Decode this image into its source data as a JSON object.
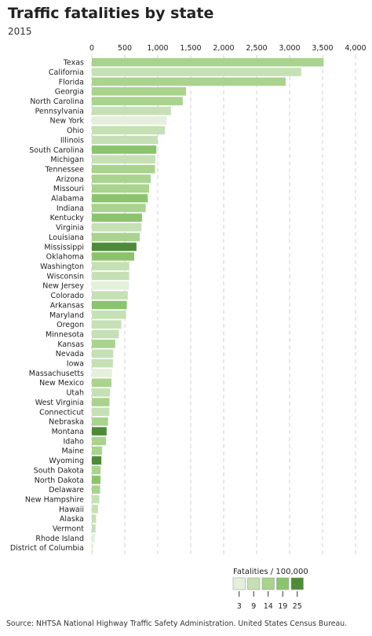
{
  "header": {
    "title": "Traffic fatalities by state",
    "subtitle": "2015"
  },
  "footer": {
    "source": "Source: NHTSA National Highway Traffic Safety Administration. United States Census Bureau."
  },
  "legend": {
    "title": "Fatalities / 100,000",
    "bins": [
      3,
      9,
      14,
      19,
      25
    ],
    "colors": [
      "#e4f0dc",
      "#c6e0b5",
      "#a9d38e",
      "#8cc46e",
      "#4f8a39"
    ]
  },
  "chart_data": {
    "type": "bar",
    "orientation": "horizontal",
    "title": "Traffic fatalities by state",
    "subtitle": "2015",
    "xlim": [
      0,
      4000
    ],
    "xticks": [
      0,
      500,
      1000,
      1500,
      2000,
      2500,
      3000,
      3500,
      4000
    ],
    "xtick_labels": [
      "0",
      "500",
      "1,000",
      "1,500",
      "2,000",
      "2,500",
      "3,000",
      "3,500",
      "4,000"
    ],
    "grid": "vertical dashed",
    "legend_position": "bottom-right",
    "color_scale": "Fatalities / 100,000",
    "categories": [
      "Texas",
      "California",
      "Florida",
      "Georgia",
      "North Carolina",
      "Pennsylvania",
      "New York",
      "Ohio",
      "Illinois",
      "South Carolina",
      "Michigan",
      "Tennessee",
      "Arizona",
      "Missouri",
      "Alabama",
      "Indiana",
      "Kentucky",
      "Virginia",
      "Louisiana",
      "Mississippi",
      "Oklahoma",
      "Washington",
      "Wisconsin",
      "New Jersey",
      "Colorado",
      "Arkansas",
      "Maryland",
      "Oregon",
      "Minnesota",
      "Kansas",
      "Nevada",
      "Iowa",
      "Massachusetts",
      "New Mexico",
      "Utah",
      "West Virginia",
      "Connecticut",
      "Nebraska",
      "Montana",
      "Idaho",
      "Maine",
      "Wyoming",
      "South Dakota",
      "North Dakota",
      "Delaware",
      "New Hampshire",
      "Hawaii",
      "Alaska",
      "Vermont",
      "Rhode Island",
      "District of Columbia"
    ],
    "values": [
      3516,
      3176,
      2939,
      1430,
      1379,
      1200,
      1136,
      1110,
      998,
      979,
      963,
      958,
      893,
      869,
      849,
      817,
      761,
      753,
      726,
      677,
      643,
      568,
      566,
      562,
      546,
      531,
      520,
      447,
      411,
      355,
      325,
      320,
      306,
      298,
      276,
      268,
      266,
      246,
      224,
      216,
      156,
      145,
      133,
      131,
      126,
      114,
      94,
      65,
      57,
      45,
      23
    ],
    "rate_per_100k": [
      13,
      8,
      14,
      14,
      14,
      9,
      6,
      10,
      8,
      20,
      10,
      15,
      13,
      14,
      17,
      12,
      17,
      9,
      16,
      23,
      17,
      8,
      10,
      6,
      10,
      18,
      9,
      11,
      7,
      12,
      11,
      10,
      5,
      14,
      9,
      15,
      7,
      13,
      22,
      13,
      12,
      25,
      16,
      17,
      13,
      9,
      7,
      9,
      9,
      4,
      3
    ]
  }
}
